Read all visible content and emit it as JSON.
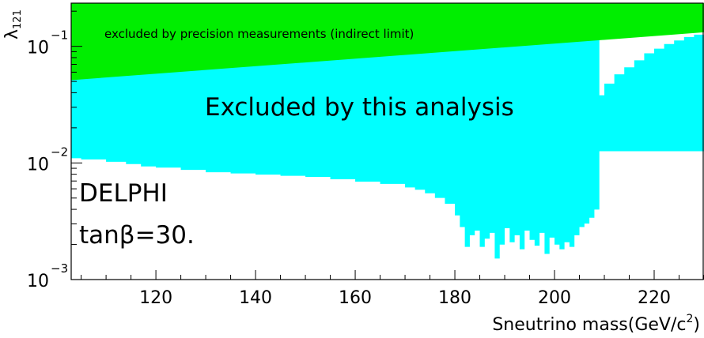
{
  "chart_data": {
    "type": "area",
    "xlabel": "Sneutrino mass(GeV/c",
    "xlabel_sup": "2",
    "xlabel_close": ")",
    "ylabel": "λ",
    "ylabel_sub": "121",
    "xlim": [
      103,
      230
    ],
    "ylim_log10": [
      -3,
      -0.63
    ],
    "y_scale": "log",
    "x_ticks": [
      120,
      140,
      160,
      180,
      200,
      220
    ],
    "y_ticks": [
      {
        "value": -1,
        "base": "10",
        "exp": "−1"
      },
      {
        "value": -2,
        "base": "10",
        "exp": "−2"
      },
      {
        "value": -3,
        "base": "10",
        "exp": "−3"
      }
    ],
    "annotations": {
      "indirect": "excluded by precision measurements (indirect limit)",
      "analysis": "Excluded by this analysis",
      "experiment": "DELPHI",
      "tanbeta": "tanβ=30."
    },
    "colors": {
      "indirect": "#00ee00",
      "analysis": "#00ffff",
      "axis": "#000000"
    },
    "indirect_limit_line": {
      "x": [
        103,
        230
      ],
      "log10_lambda": [
        -1.29,
        -0.88
      ]
    },
    "analysis_limit": {
      "x": [
        103,
        105,
        110,
        114,
        117,
        120,
        125,
        130,
        135,
        140,
        145,
        150,
        155,
        160,
        165,
        170,
        172,
        174,
        176,
        178,
        180,
        181,
        182,
        183,
        184,
        185,
        186,
        187,
        188,
        189,
        190,
        191,
        192,
        193,
        194,
        195,
        196,
        197,
        198,
        199,
        200,
        201,
        202,
        203,
        204,
        205,
        206,
        207,
        208,
        209,
        230
      ],
      "log10_lambda": [
        -1.96,
        -1.97,
        -1.99,
        -2.01,
        -2.03,
        -2.04,
        -2.06,
        -2.08,
        -2.09,
        -2.1,
        -2.11,
        -2.12,
        -2.14,
        -2.16,
        -2.18,
        -2.21,
        -2.23,
        -2.26,
        -2.3,
        -2.35,
        -2.45,
        -2.55,
        -2.72,
        -2.62,
        -2.58,
        -2.72,
        -2.65,
        -2.6,
        -2.82,
        -2.7,
        -2.56,
        -2.68,
        -2.62,
        -2.74,
        -2.58,
        -2.66,
        -2.71,
        -2.6,
        -2.78,
        -2.64,
        -2.7,
        -2.74,
        -2.68,
        -2.72,
        -2.62,
        -2.55,
        -2.52,
        -2.47,
        -2.4,
        -1.9,
        -1.9
      ],
      "upper_edge_x": [
        209,
        210,
        212,
        214,
        216,
        218,
        220,
        222,
        224,
        226,
        228,
        230
      ],
      "upper_edge_log10_lambda": [
        -1.55,
        -1.42,
        -1.32,
        -1.24,
        -1.18,
        -1.12,
        -1.06,
        -1.02,
        -0.98,
        -0.95,
        -0.92,
        -0.9
      ]
    }
  }
}
